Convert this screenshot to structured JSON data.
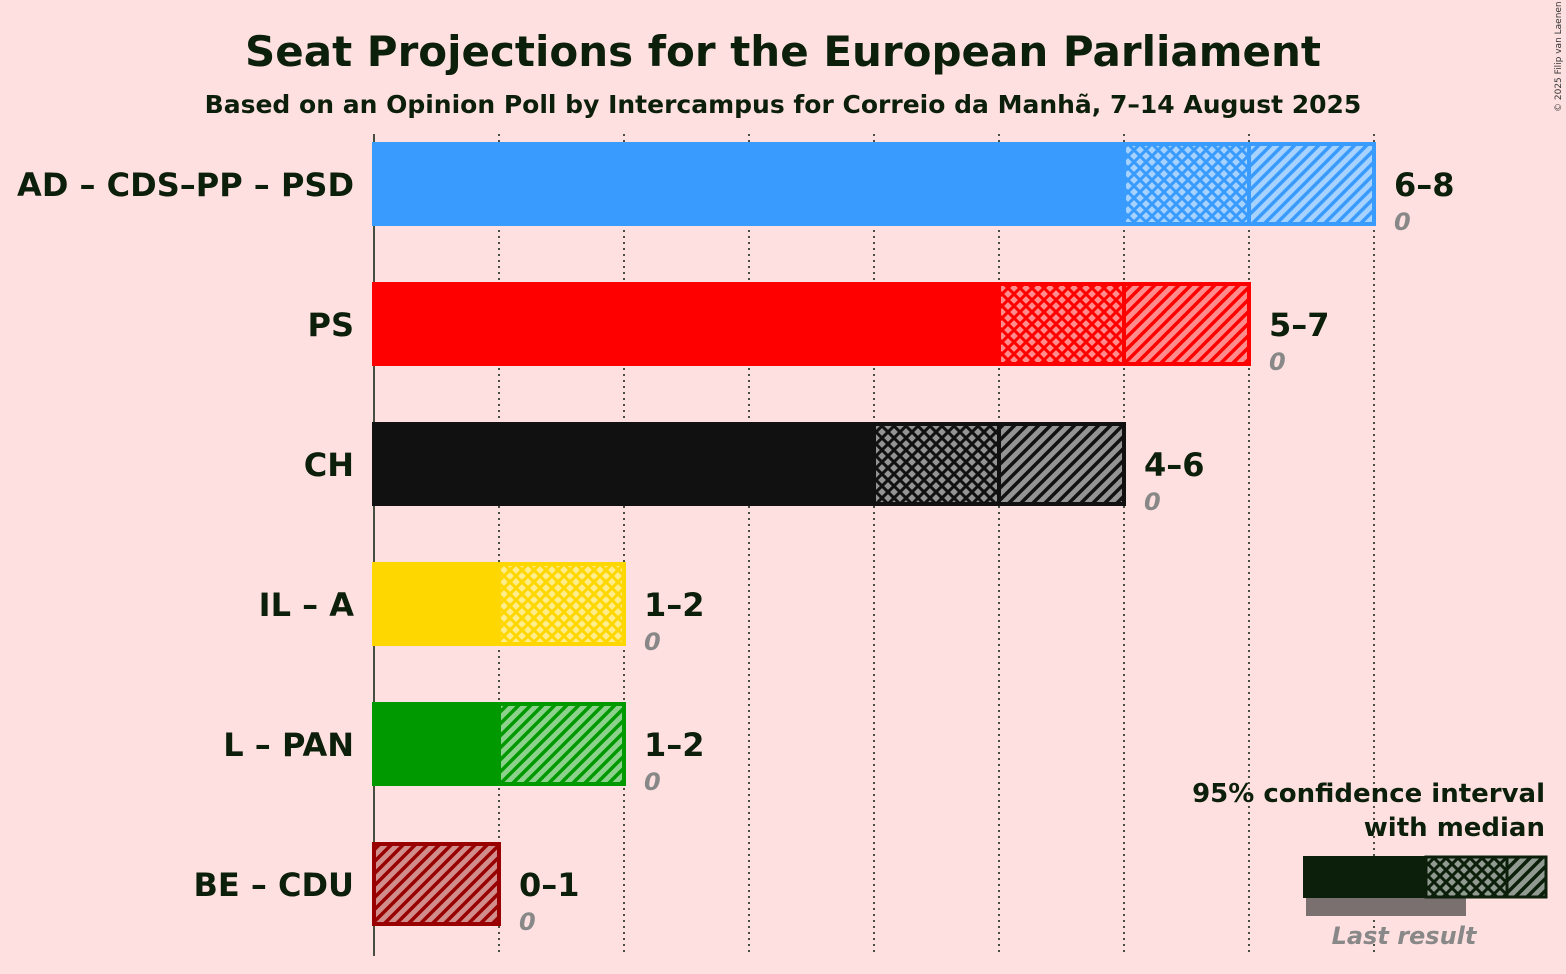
{
  "chart_data": {
    "type": "bar",
    "orientation": "horizontal",
    "title": "Seat Projections for the European Parliament",
    "subtitle": "Based on an Opinion Poll by Intercampus for Correio da Manhã, 7–14 August 2025",
    "copyright": "© 2025 Filip van Laenen",
    "xlim": [
      0,
      8
    ],
    "grid": true,
    "parties": [
      {
        "name": "AD – CDS–PP – PSD",
        "color": "#3A9BFF",
        "low": 6,
        "median": 7,
        "high": 8,
        "range_label": "6–8",
        "last_result": 0,
        "last_label": "0"
      },
      {
        "name": "PS",
        "color": "#FF0000",
        "low": 5,
        "median": 6,
        "high": 7,
        "range_label": "5–7",
        "last_result": 0,
        "last_label": "0"
      },
      {
        "name": "CH",
        "color": "#111111",
        "low": 4,
        "median": 5,
        "high": 6,
        "range_label": "4–6",
        "last_result": 0,
        "last_label": "0"
      },
      {
        "name": "IL – A",
        "color": "#FFD700",
        "low": 1,
        "median": 2,
        "high": 2,
        "range_label": "1–2",
        "last_result": 0,
        "last_label": "0"
      },
      {
        "name": "L – PAN",
        "color": "#009900",
        "low": 1,
        "median": 1,
        "high": 2,
        "range_label": "1–2",
        "last_result": 0,
        "last_label": "0"
      },
      {
        "name": "BE – CDU",
        "color": "#990000",
        "low": 0,
        "median": 0,
        "high": 1,
        "range_label": "0–1",
        "last_result": 0,
        "last_label": "0"
      }
    ],
    "legend": {
      "line1": "95% confidence interval",
      "line2": "with median",
      "last_result": "Last result",
      "placement": "bottom-right"
    }
  }
}
